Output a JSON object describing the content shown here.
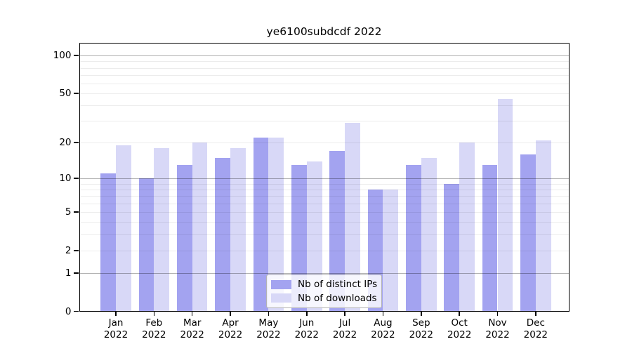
{
  "chart_data": {
    "type": "bar",
    "title": "ye6100subdcdf 2022",
    "categories": [
      "Jan",
      "Feb",
      "Mar",
      "Apr",
      "May",
      "Jun",
      "Jul",
      "Aug",
      "Sep",
      "Oct",
      "Nov",
      "Dec"
    ],
    "category_year": "2022",
    "series": [
      {
        "name": "Nb of distinct IPs",
        "key": "distinct-ips",
        "color": "#a3a3f0",
        "values": [
          11,
          10,
          13,
          15,
          22,
          13,
          17,
          8,
          13,
          9,
          13,
          16
        ]
      },
      {
        "name": "Nb of downloads",
        "key": "downloads",
        "color": "#d8d8f7",
        "values": [
          19,
          18,
          20,
          18,
          22,
          14,
          29,
          8,
          15,
          20,
          45,
          21
        ]
      }
    ],
    "yscale": "log1p",
    "ylim": [
      0,
      127
    ],
    "ytick_values": [
      0,
      1,
      2,
      5,
      10,
      20,
      50,
      100
    ],
    "grid": "horizontal",
    "grid_major_values": [
      1,
      10,
      100
    ],
    "grid_minor_values": [
      2,
      3,
      4,
      5,
      6,
      7,
      8,
      9,
      20,
      30,
      40,
      50,
      60,
      70,
      80,
      90
    ],
    "legend_position": "bottom-center",
    "xlabel": "",
    "ylabel": ""
  }
}
